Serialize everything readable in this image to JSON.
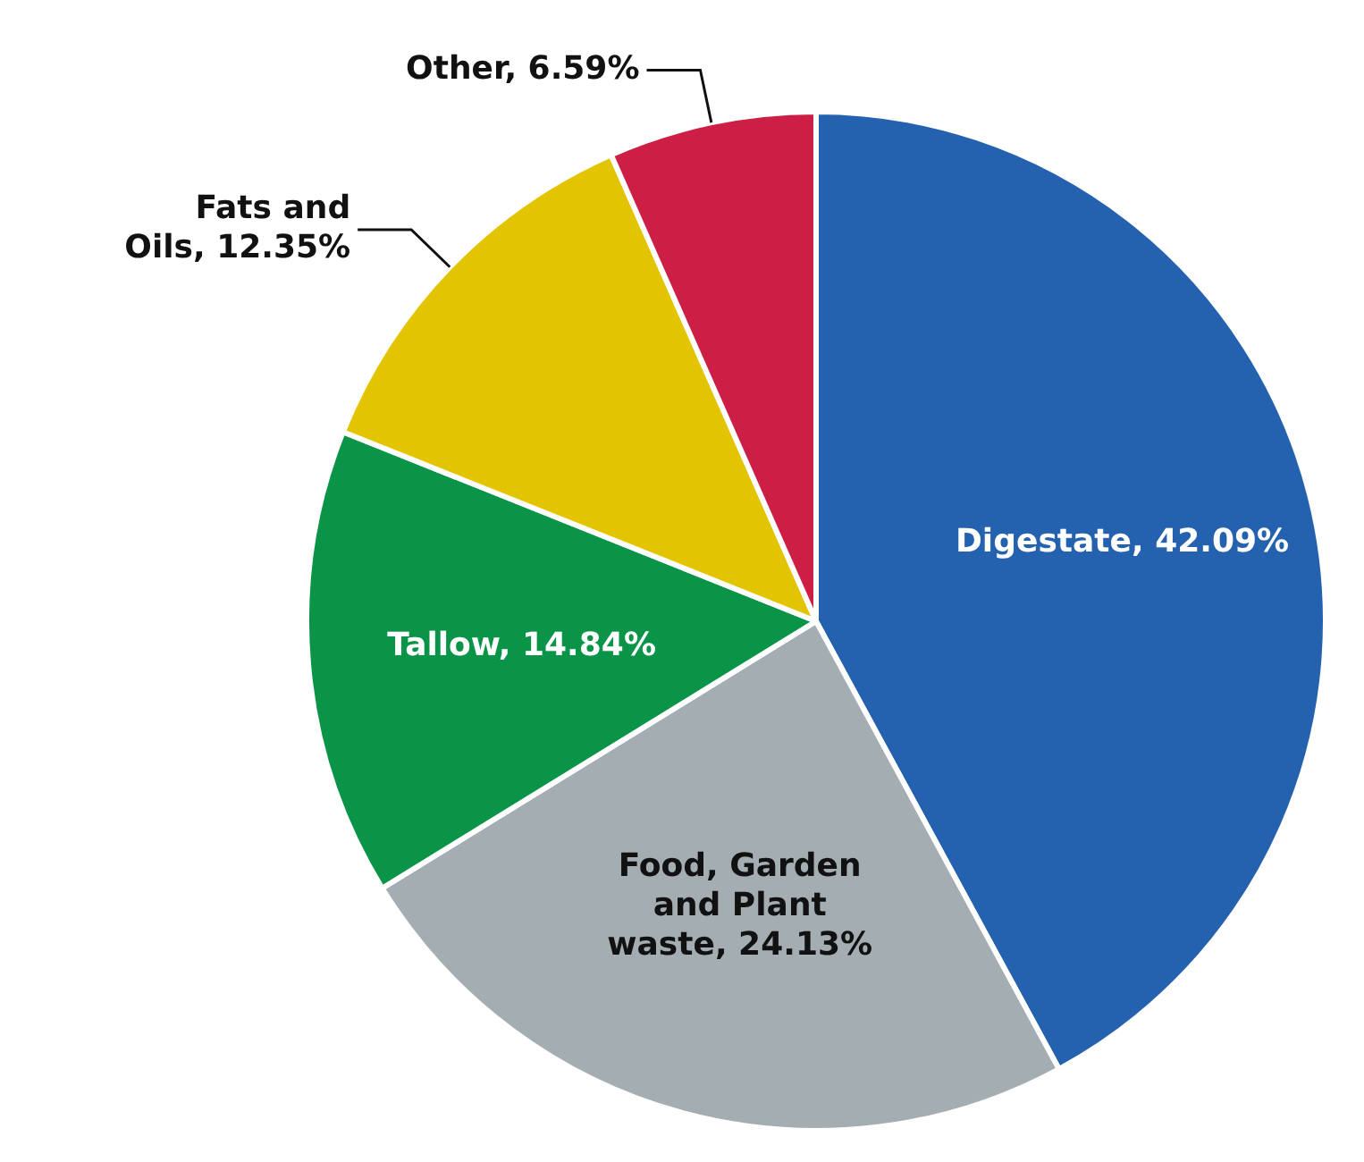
{
  "chart_data": {
    "type": "pie",
    "categories": [
      "Digestate",
      "Food, Garden and Plant waste",
      "Tallow",
      "Fats and Oils",
      "Other"
    ],
    "values": [
      42.09,
      24.13,
      14.84,
      12.35,
      6.59
    ],
    "value_labels": [
      "42.09%",
      "24.13%",
      "14.84%",
      "12.35%",
      "6.59%"
    ],
    "colors": [
      "#2462b0",
      "#a3adb2",
      "#0a9447",
      "#e2c500",
      "#cd1f45"
    ],
    "legend": false
  }
}
